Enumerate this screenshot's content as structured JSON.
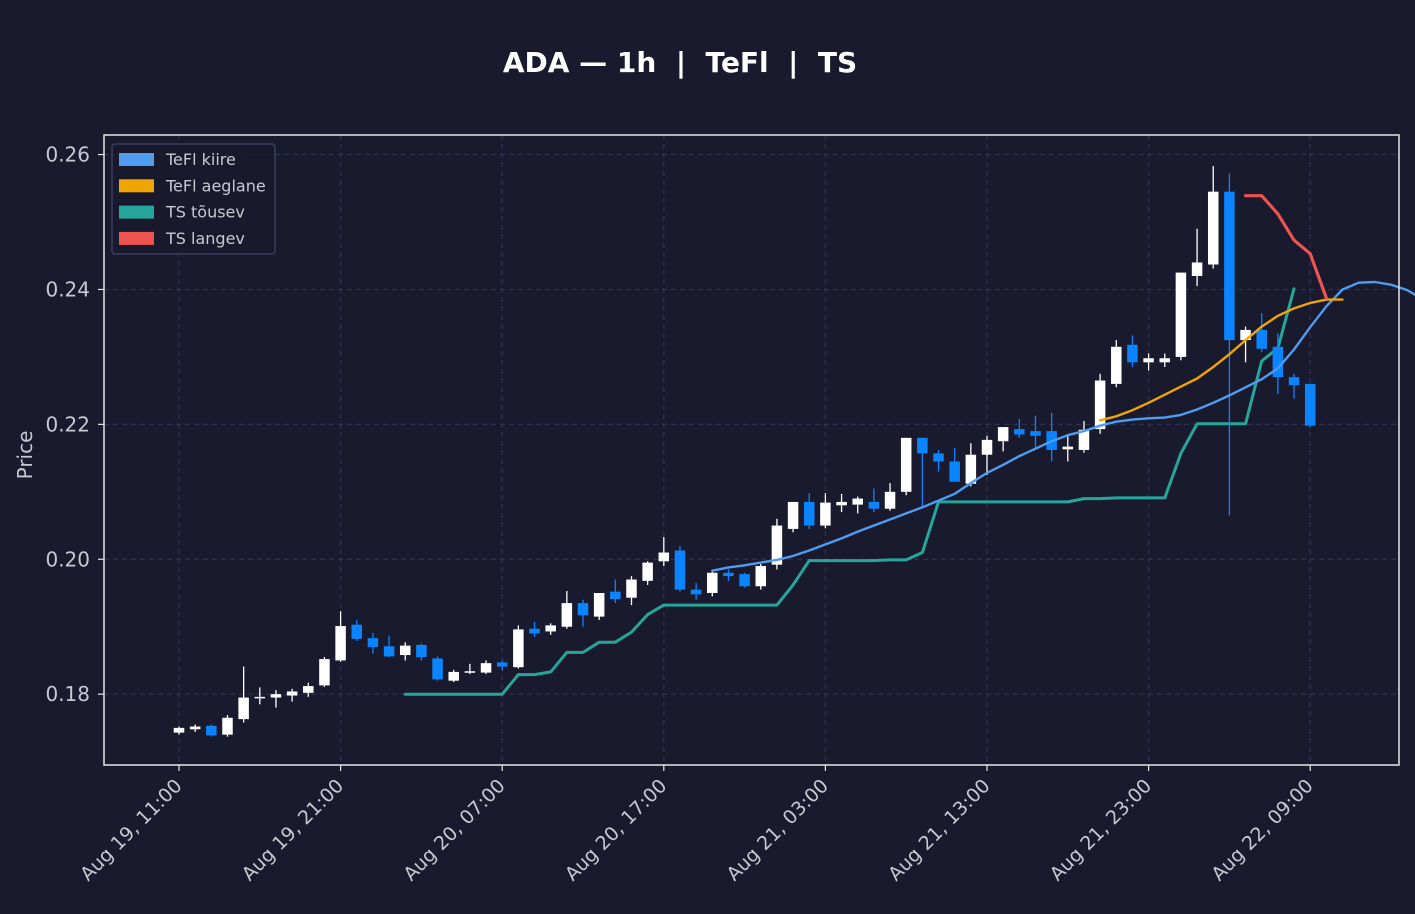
{
  "chart_data": {
    "type": "candlestick",
    "title": "ADA — 1h  |  TeFl  |  TS",
    "ylabel": "Price",
    "xlabel": "",
    "ylim": [
      0.1695,
      0.2629
    ],
    "yticks": [
      0.18,
      0.2,
      0.22,
      0.24,
      0.26
    ],
    "ytick_labels": [
      "0.18",
      "0.20",
      "0.22",
      "0.24",
      "0.26"
    ],
    "xticks": [
      {
        "i": 0,
        "label": "Aug 19, 11:00"
      },
      {
        "i": 10,
        "label": "Aug 19, 21:00"
      },
      {
        "i": 20,
        "label": "Aug 20, 07:00"
      },
      {
        "i": 30,
        "label": "Aug 20, 17:00"
      },
      {
        "i": 40,
        "label": "Aug 21, 03:00"
      },
      {
        "i": 50,
        "label": "Aug 21, 13:00"
      },
      {
        "i": 60,
        "label": "Aug 21, 23:00"
      },
      {
        "i": 70,
        "label": "Aug 22, 09:00"
      }
    ],
    "grid": true,
    "legend_position": "top-left",
    "colors": {
      "background": "#1a1a2e",
      "up": "#ffffff",
      "down": "#0a84ff",
      "fast": "#4f9cf0",
      "slow": "#f0a500",
      "ts_up": "#26a69a",
      "ts_down": "#ef5350",
      "axis": "#e6e6e6",
      "text": "#c8c8d0",
      "grid": "#34345a"
    },
    "legend": [
      {
        "label": "TeFl kiire",
        "color": "#4f9cf0"
      },
      {
        "label": "TeFl aeglane",
        "color": "#f0a500"
      },
      {
        "label": "TS tõusev",
        "color": "#26a69a"
      },
      {
        "label": "TS langev",
        "color": "#ef5350"
      }
    ],
    "candles": [
      [
        0.1743,
        0.1752,
        0.174,
        0.175
      ],
      [
        0.1748,
        0.1755,
        0.1744,
        0.1752
      ],
      [
        0.1753,
        0.1755,
        0.1737,
        0.1739
      ],
      [
        0.174,
        0.1769,
        0.1737,
        0.1765
      ],
      [
        0.1763,
        0.1841,
        0.1758,
        0.1795
      ],
      [
        0.1795,
        0.181,
        0.1785,
        0.1796
      ],
      [
        0.1795,
        0.1806,
        0.178,
        0.18
      ],
      [
        0.1798,
        0.1808,
        0.1789,
        0.1804
      ],
      [
        0.1802,
        0.1817,
        0.1796,
        0.1812
      ],
      [
        0.1813,
        0.1855,
        0.1811,
        0.1852
      ],
      [
        0.185,
        0.1923,
        0.1848,
        0.1901
      ],
      [
        0.1903,
        0.191,
        0.1879,
        0.1882
      ],
      [
        0.1883,
        0.1891,
        0.186,
        0.187
      ],
      [
        0.1871,
        0.1887,
        0.1855,
        0.1856
      ],
      [
        0.1858,
        0.1877,
        0.185,
        0.1872
      ],
      [
        0.1873,
        0.1875,
        0.185,
        0.1855
      ],
      [
        0.1853,
        0.1856,
        0.182,
        0.1822
      ],
      [
        0.182,
        0.1836,
        0.1818,
        0.1833
      ],
      [
        0.1833,
        0.1845,
        0.183,
        0.1834
      ],
      [
        0.1832,
        0.185,
        0.183,
        0.1846
      ],
      [
        0.1847,
        0.185,
        0.1835,
        0.1841
      ],
      [
        0.184,
        0.1902,
        0.1838,
        0.1896
      ],
      [
        0.1897,
        0.1907,
        0.1885,
        0.189
      ],
      [
        0.1893,
        0.1905,
        0.1888,
        0.1902
      ],
      [
        0.19,
        0.1953,
        0.1897,
        0.1935
      ],
      [
        0.1935,
        0.194,
        0.19,
        0.1917
      ],
      [
        0.1915,
        0.195,
        0.191,
        0.195
      ],
      [
        0.1952,
        0.197,
        0.1935,
        0.1941
      ],
      [
        0.1943,
        0.1975,
        0.1932,
        0.197
      ],
      [
        0.1968,
        0.1997,
        0.1962,
        0.1995
      ],
      [
        0.1997,
        0.2033,
        0.199,
        0.201
      ],
      [
        0.2013,
        0.202,
        0.1952,
        0.1955
      ],
      [
        0.1955,
        0.1965,
        0.194,
        0.1948
      ],
      [
        0.195,
        0.1983,
        0.1945,
        0.198
      ],
      [
        0.198,
        0.1985,
        0.1968,
        0.1975
      ],
      [
        0.1978,
        0.198,
        0.1958,
        0.196
      ],
      [
        0.196,
        0.1993,
        0.1955,
        0.199
      ],
      [
        0.1992,
        0.206,
        0.1985,
        0.205
      ],
      [
        0.2045,
        0.2085,
        0.204,
        0.2085
      ],
      [
        0.2085,
        0.2098,
        0.2045,
        0.205
      ],
      [
        0.205,
        0.2098,
        0.2046,
        0.2084
      ],
      [
        0.208,
        0.2097,
        0.207,
        0.2085
      ],
      [
        0.2081,
        0.2093,
        0.2068,
        0.209
      ],
      [
        0.2085,
        0.2105,
        0.207,
        0.2075
      ],
      [
        0.2075,
        0.2113,
        0.2072,
        0.21
      ],
      [
        0.21,
        0.218,
        0.2095,
        0.218
      ],
      [
        0.218,
        0.218,
        0.2078,
        0.2157
      ],
      [
        0.2157,
        0.2162,
        0.213,
        0.2145
      ],
      [
        0.2145,
        0.2165,
        0.2115,
        0.2115
      ],
      [
        0.2112,
        0.2172,
        0.2108,
        0.2155
      ],
      [
        0.2155,
        0.2183,
        0.2125,
        0.2177
      ],
      [
        0.2175,
        0.2195,
        0.216,
        0.2196
      ],
      [
        0.2193,
        0.2208,
        0.218,
        0.2185
      ],
      [
        0.219,
        0.2213,
        0.2165,
        0.2183
      ],
      [
        0.219,
        0.2217,
        0.2145,
        0.2162
      ],
      [
        0.2163,
        0.2185,
        0.2145,
        0.2167
      ],
      [
        0.2162,
        0.2205,
        0.2158,
        0.2192
      ],
      [
        0.2193,
        0.2275,
        0.2186,
        0.2265
      ],
      [
        0.226,
        0.2325,
        0.2255,
        0.2315
      ],
      [
        0.2318,
        0.2332,
        0.2285,
        0.2292
      ],
      [
        0.2292,
        0.2305,
        0.228,
        0.2298
      ],
      [
        0.2292,
        0.2305,
        0.2285,
        0.2298
      ],
      [
        0.23,
        0.2425,
        0.2295,
        0.2425
      ],
      [
        0.242,
        0.249,
        0.2405,
        0.244
      ],
      [
        0.2437,
        0.2583,
        0.2431,
        0.2545
      ],
      [
        0.2545,
        0.2572,
        0.2065,
        0.2325
      ],
      [
        0.2325,
        0.2345,
        0.2292,
        0.234
      ],
      [
        0.234,
        0.2365,
        0.2307,
        0.2312
      ],
      [
        0.2315,
        0.2335,
        0.2245,
        0.227
      ],
      [
        0.227,
        0.2275,
        0.2238,
        0.2258
      ],
      [
        0.226,
        0.226,
        0.2196,
        0.2198
      ]
    ],
    "series": [
      {
        "name": "TeFl kiire",
        "start": 33,
        "values": [
          0.1983,
          0.1988,
          0.1991,
          0.1995,
          0.1999,
          0.2005,
          0.2013,
          0.2022,
          0.2031,
          0.2041,
          0.205,
          0.2059,
          0.2068,
          0.2077,
          0.2087,
          0.2097,
          0.2113,
          0.2128,
          0.214,
          0.2153,
          0.2164,
          0.2175,
          0.2184,
          0.219,
          0.2198,
          0.2204,
          0.2207,
          0.2209,
          0.221,
          0.2214,
          0.2222,
          0.2232,
          0.2243,
          0.2255,
          0.2267,
          0.2283,
          0.2311,
          0.2344,
          0.2375,
          0.24,
          0.241,
          0.2411,
          0.2407,
          0.2399,
          0.2385
        ]
      },
      {
        "name": "TeFl aeglane",
        "start": 57,
        "values": [
          0.2206,
          0.2212,
          0.2221,
          0.2232,
          0.2244,
          0.2256,
          0.2268,
          0.2285,
          0.2304,
          0.2325,
          0.2345,
          0.2361,
          0.2372,
          0.238,
          0.2385,
          0.2385
        ]
      },
      {
        "name": "TS tõusev",
        "start": 14,
        "values": [
          0.18,
          0.18,
          0.18,
          0.18,
          0.18,
          0.18,
          0.18,
          0.1829,
          0.1829,
          0.1833,
          0.1862,
          0.1862,
          0.1877,
          0.1877,
          0.1892,
          0.1918,
          0.1932,
          0.1932,
          0.1932,
          0.1932,
          0.1932,
          0.1932,
          0.1932,
          0.1932,
          0.1962,
          0.1998,
          0.1998,
          0.1998,
          0.1998,
          0.1998,
          0.1999,
          0.1999,
          0.201,
          0.2085,
          0.2085,
          0.2085,
          0.2085,
          0.2085,
          0.2085,
          0.2085,
          0.2085,
          0.2085,
          0.209,
          0.209,
          0.2091,
          0.2091,
          0.2091,
          0.2091,
          0.2157,
          0.2201,
          0.2201,
          0.2201,
          0.2201,
          0.2294,
          0.2313,
          0.2401
        ]
      },
      {
        "name": "TS langev",
        "start": 66,
        "values": [
          0.2539,
          0.2539,
          0.2512,
          0.2473,
          0.2453,
          0.2387
        ]
      }
    ]
  }
}
